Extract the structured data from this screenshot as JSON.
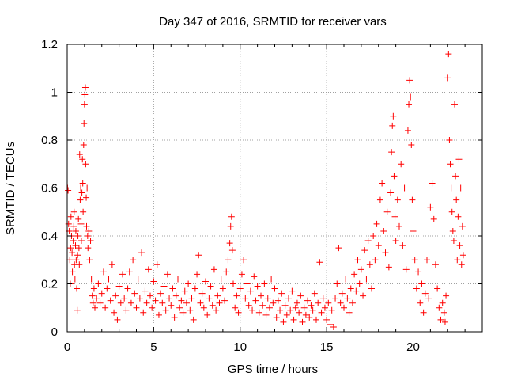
{
  "chart_data": {
    "type": "scatter",
    "title": "Day 347 of 2016, SRMTID for receiver vars",
    "xlabel": "GPS time / hours",
    "ylabel": "SRMTID / TECUs",
    "xlim": [
      0,
      24
    ],
    "ylim": [
      0,
      1.2
    ],
    "x_ticks": [
      0,
      5,
      10,
      15,
      20
    ],
    "y_ticks": [
      0,
      0.2,
      0.4,
      0.6,
      0.8,
      1,
      1.2
    ],
    "x_tick_labels": [
      "0",
      "5",
      "10",
      "15",
      "20"
    ],
    "y_tick_labels": [
      "0",
      "0.2",
      "0.4",
      "0.6",
      "0.8",
      "1",
      "1.2"
    ],
    "grid": true,
    "marker": "+",
    "color": "#ff0000",
    "series": [
      {
        "name": "SRMTID",
        "points": [
          [
            0.02,
            0.6
          ],
          [
            0.05,
            0.59
          ],
          [
            0.08,
            0.45
          ],
          [
            0.12,
            0.42
          ],
          [
            0.15,
            0.3
          ],
          [
            0.18,
            0.2
          ],
          [
            0.2,
            0.35
          ],
          [
            0.22,
            0.48
          ],
          [
            0.25,
            0.4
          ],
          [
            0.28,
            0.33
          ],
          [
            0.3,
            0.25
          ],
          [
            0.35,
            0.38
          ],
          [
            0.38,
            0.44
          ],
          [
            0.4,
            0.5
          ],
          [
            0.42,
            0.28
          ],
          [
            0.45,
            0.22
          ],
          [
            0.48,
            0.36
          ],
          [
            0.5,
            0.42
          ],
          [
            0.52,
            0.3
          ],
          [
            0.55,
            0.18
          ],
          [
            0.58,
            0.09
          ],
          [
            0.6,
            0.32
          ],
          [
            0.62,
            0.4
          ],
          [
            0.65,
            0.47
          ],
          [
            0.68,
            0.35
          ],
          [
            0.7,
            0.28
          ],
          [
            0.72,
            0.74
          ],
          [
            0.75,
            0.55
          ],
          [
            0.78,
            0.6
          ],
          [
            0.8,
            0.45
          ],
          [
            0.82,
            0.38
          ],
          [
            0.85,
            0.58
          ],
          [
            0.88,
            0.72
          ],
          [
            0.9,
            0.62
          ],
          [
            0.92,
            0.5
          ],
          [
            0.95,
            0.78
          ],
          [
            0.97,
            0.87
          ],
          [
            1.0,
            0.95
          ],
          [
            1.02,
            0.99
          ],
          [
            1.05,
            1.02
          ],
          [
            1.07,
            0.7
          ],
          [
            1.1,
            0.56
          ],
          [
            1.12,
            0.44
          ],
          [
            1.15,
            0.6
          ],
          [
            1.18,
            0.4
          ],
          [
            1.2,
            0.35
          ],
          [
            1.25,
            0.42
          ],
          [
            1.3,
            0.3
          ],
          [
            1.35,
            0.38
          ],
          [
            1.4,
            0.22
          ],
          [
            1.45,
            0.15
          ],
          [
            1.5,
            0.12
          ],
          [
            1.55,
            0.18
          ],
          [
            1.6,
            0.1
          ],
          [
            1.7,
            0.14
          ],
          [
            1.8,
            0.2
          ],
          [
            1.9,
            0.12
          ],
          [
            2.0,
            0.16
          ],
          [
            2.1,
            0.25
          ],
          [
            2.2,
            0.1
          ],
          [
            2.3,
            0.18
          ],
          [
            2.4,
            0.22
          ],
          [
            2.5,
            0.13
          ],
          [
            2.6,
            0.28
          ],
          [
            2.7,
            0.08
          ],
          [
            2.8,
            0.15
          ],
          [
            2.9,
            0.05
          ],
          [
            3.0,
            0.19
          ],
          [
            3.1,
            0.12
          ],
          [
            3.2,
            0.24
          ],
          [
            3.3,
            0.14
          ],
          [
            3.4,
            0.09
          ],
          [
            3.5,
            0.18
          ],
          [
            3.6,
            0.25
          ],
          [
            3.7,
            0.12
          ],
          [
            3.8,
            0.3
          ],
          [
            3.9,
            0.16
          ],
          [
            4.0,
            0.1
          ],
          [
            4.1,
            0.22
          ],
          [
            4.2,
            0.14
          ],
          [
            4.3,
            0.33
          ],
          [
            4.4,
            0.08
          ],
          [
            4.5,
            0.17
          ],
          [
            4.6,
            0.12
          ],
          [
            4.7,
            0.26
          ],
          [
            4.8,
            0.15
          ],
          [
            4.9,
            0.1
          ],
          [
            5.0,
            0.21
          ],
          [
            5.1,
            0.13
          ],
          [
            5.2,
            0.28
          ],
          [
            5.3,
            0.07
          ],
          [
            5.4,
            0.16
          ],
          [
            5.5,
            0.12
          ],
          [
            5.6,
            0.19
          ],
          [
            5.7,
            0.09
          ],
          [
            5.8,
            0.24
          ],
          [
            5.9,
            0.14
          ],
          [
            6.0,
            0.11
          ],
          [
            6.1,
            0.18
          ],
          [
            6.2,
            0.06
          ],
          [
            6.3,
            0.15
          ],
          [
            6.4,
            0.22
          ],
          [
            6.5,
            0.1
          ],
          [
            6.6,
            0.13
          ],
          [
            6.7,
            0.08
          ],
          [
            6.8,
            0.17
          ],
          [
            6.9,
            0.12
          ],
          [
            7.0,
            0.2
          ],
          [
            7.1,
            0.09
          ],
          [
            7.2,
            0.14
          ],
          [
            7.3,
            0.05
          ],
          [
            7.4,
            0.18
          ],
          [
            7.5,
            0.24
          ],
          [
            7.6,
            0.32
          ],
          [
            7.7,
            0.12
          ],
          [
            7.8,
            0.16
          ],
          [
            7.9,
            0.1
          ],
          [
            8.0,
            0.21
          ],
          [
            8.1,
            0.07
          ],
          [
            8.2,
            0.14
          ],
          [
            8.3,
            0.19
          ],
          [
            8.4,
            0.11
          ],
          [
            8.5,
            0.26
          ],
          [
            8.6,
            0.09
          ],
          [
            8.7,
            0.15
          ],
          [
            8.8,
            0.12
          ],
          [
            8.9,
            0.22
          ],
          [
            9.0,
            0.18
          ],
          [
            9.1,
            0.13
          ],
          [
            9.2,
            0.25
          ],
          [
            9.3,
            0.3
          ],
          [
            9.4,
            0.37
          ],
          [
            9.45,
            0.44
          ],
          [
            9.5,
            0.48
          ],
          [
            9.55,
            0.34
          ],
          [
            9.6,
            0.2
          ],
          [
            9.7,
            0.1
          ],
          [
            9.8,
            0.15
          ],
          [
            9.9,
            0.08
          ],
          [
            10.0,
            0.18
          ],
          [
            10.1,
            0.24
          ],
          [
            10.2,
            0.3
          ],
          [
            10.3,
            0.14
          ],
          [
            10.4,
            0.2
          ],
          [
            10.5,
            0.11
          ],
          [
            10.6,
            0.17
          ],
          [
            10.7,
            0.09
          ],
          [
            10.8,
            0.23
          ],
          [
            10.9,
            0.13
          ],
          [
            11.0,
            0.19
          ],
          [
            11.1,
            0.08
          ],
          [
            11.2,
            0.15
          ],
          [
            11.3,
            0.11
          ],
          [
            11.4,
            0.2
          ],
          [
            11.5,
            0.07
          ],
          [
            11.6,
            0.14
          ],
          [
            11.7,
            0.1
          ],
          [
            11.8,
            0.22
          ],
          [
            11.9,
            0.12
          ],
          [
            12.0,
            0.18
          ],
          [
            12.1,
            0.06
          ],
          [
            12.2,
            0.13
          ],
          [
            12.3,
            0.09
          ],
          [
            12.4,
            0.16
          ],
          [
            12.5,
            0.04
          ],
          [
            12.6,
            0.11
          ],
          [
            12.7,
            0.07
          ],
          [
            12.8,
            0.14
          ],
          [
            12.9,
            0.09
          ],
          [
            13.0,
            0.17
          ],
          [
            13.1,
            0.05
          ],
          [
            13.2,
            0.1
          ],
          [
            13.3,
            0.12
          ],
          [
            13.4,
            0.08
          ],
          [
            13.5,
            0.15
          ],
          [
            13.6,
            0.04
          ],
          [
            13.7,
            0.1
          ],
          [
            13.8,
            0.07
          ],
          [
            13.9,
            0.13
          ],
          [
            14.0,
            0.06
          ],
          [
            14.1,
            0.11
          ],
          [
            14.2,
            0.09
          ],
          [
            14.3,
            0.16
          ],
          [
            14.4,
            0.05
          ],
          [
            14.5,
            0.12
          ],
          [
            14.6,
            0.29
          ],
          [
            14.7,
            0.08
          ],
          [
            14.8,
            0.14
          ],
          [
            14.9,
            0.1
          ],
          [
            15.0,
            0.05
          ],
          [
            15.1,
            0.12
          ],
          [
            15.2,
            0.03
          ],
          [
            15.3,
            0.09
          ],
          [
            15.4,
            0.02
          ],
          [
            15.5,
            0.14
          ],
          [
            15.6,
            0.2
          ],
          [
            15.7,
            0.35
          ],
          [
            15.8,
            0.12
          ],
          [
            15.9,
            0.16
          ],
          [
            16.0,
            0.1
          ],
          [
            16.1,
            0.22
          ],
          [
            16.2,
            0.14
          ],
          [
            16.3,
            0.08
          ],
          [
            16.4,
            0.18
          ],
          [
            16.5,
            0.12
          ],
          [
            16.6,
            0.24
          ],
          [
            16.7,
            0.17
          ],
          [
            16.8,
            0.3
          ],
          [
            16.9,
            0.2
          ],
          [
            17.0,
            0.26
          ],
          [
            17.1,
            0.15
          ],
          [
            17.2,
            0.34
          ],
          [
            17.3,
            0.22
          ],
          [
            17.4,
            0.38
          ],
          [
            17.5,
            0.28
          ],
          [
            17.6,
            0.18
          ],
          [
            17.7,
            0.4
          ],
          [
            17.8,
            0.3
          ],
          [
            17.9,
            0.45
          ],
          [
            18.0,
            0.36
          ],
          [
            18.1,
            0.55
          ],
          [
            18.2,
            0.62
          ],
          [
            18.3,
            0.42
          ],
          [
            18.4,
            0.33
          ],
          [
            18.5,
            0.5
          ],
          [
            18.6,
            0.27
          ],
          [
            18.7,
            0.58
          ],
          [
            18.75,
            0.75
          ],
          [
            18.8,
            0.86
          ],
          [
            18.85,
            0.9
          ],
          [
            18.9,
            0.65
          ],
          [
            18.95,
            0.48
          ],
          [
            19.0,
            0.38
          ],
          [
            19.1,
            0.55
          ],
          [
            19.2,
            0.44
          ],
          [
            19.3,
            0.7
          ],
          [
            19.4,
            0.36
          ],
          [
            19.5,
            0.6
          ],
          [
            19.6,
            0.26
          ],
          [
            19.7,
            0.84
          ],
          [
            19.75,
            0.95
          ],
          [
            19.8,
            1.05
          ],
          [
            19.85,
            0.98
          ],
          [
            19.9,
            0.78
          ],
          [
            19.95,
            0.55
          ],
          [
            20.0,
            0.42
          ],
          [
            20.1,
            0.3
          ],
          [
            20.2,
            0.18
          ],
          [
            20.3,
            0.25
          ],
          [
            20.4,
            0.12
          ],
          [
            20.5,
            0.2
          ],
          [
            20.6,
            0.08
          ],
          [
            20.7,
            0.16
          ],
          [
            20.8,
            0.3
          ],
          [
            20.9,
            0.14
          ],
          [
            21.0,
            0.52
          ],
          [
            21.1,
            0.62
          ],
          [
            21.2,
            0.47
          ],
          [
            21.3,
            0.28
          ],
          [
            21.4,
            0.18
          ],
          [
            21.5,
            0.1
          ],
          [
            21.6,
            0.05
          ],
          [
            21.7,
            0.12
          ],
          [
            21.8,
            0.08
          ],
          [
            21.85,
            0.04
          ],
          [
            21.9,
            0.15
          ],
          [
            22.0,
            1.06
          ],
          [
            22.05,
            1.16
          ],
          [
            22.1,
            0.8
          ],
          [
            22.15,
            0.7
          ],
          [
            22.2,
            0.6
          ],
          [
            22.25,
            0.5
          ],
          [
            22.3,
            0.42
          ],
          [
            22.35,
            0.38
          ],
          [
            22.4,
            0.95
          ],
          [
            22.45,
            0.65
          ],
          [
            22.5,
            0.55
          ],
          [
            22.55,
            0.3
          ],
          [
            22.6,
            0.48
          ],
          [
            22.65,
            0.72
          ],
          [
            22.7,
            0.36
          ],
          [
            22.75,
            0.6
          ],
          [
            22.8,
            0.28
          ],
          [
            22.85,
            0.44
          ],
          [
            22.9,
            0.32
          ]
        ]
      }
    ]
  }
}
